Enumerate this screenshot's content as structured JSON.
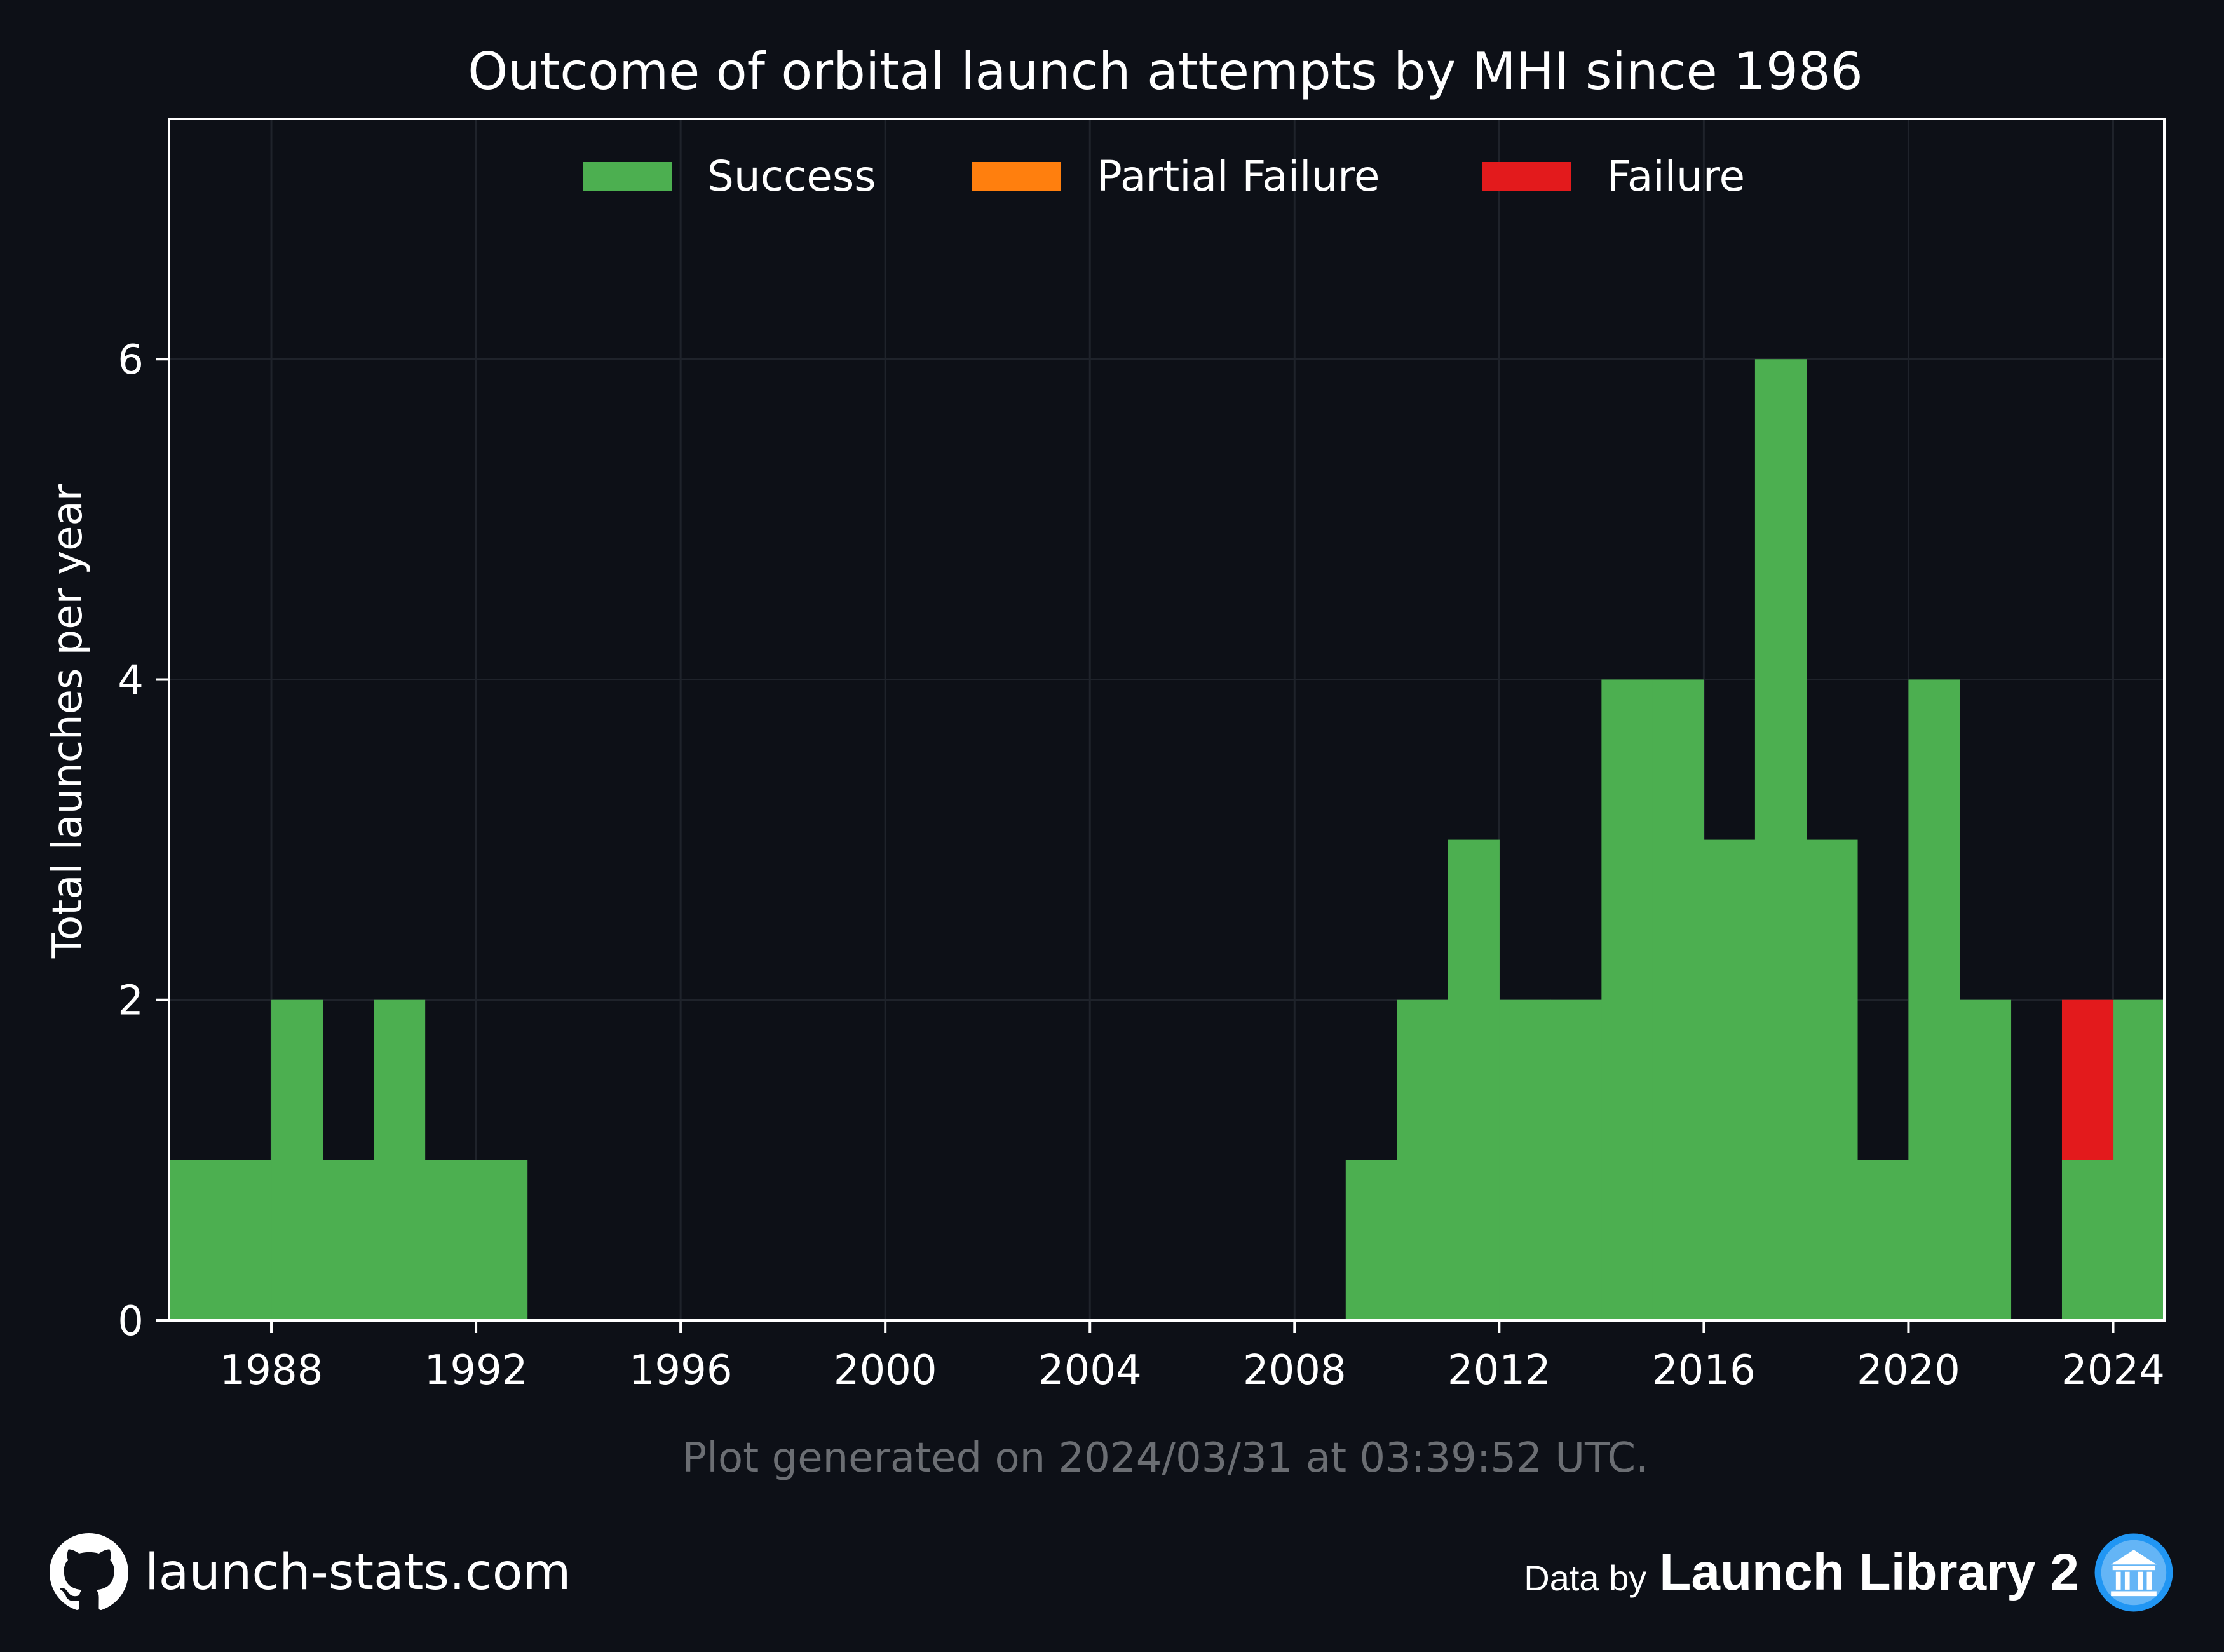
{
  "chart_data": {
    "type": "bar",
    "stacked": true,
    "title": "Outcome of orbital launch attempts by MHI since 1986",
    "xlabel": "",
    "ylabel": "Total launches per year",
    "xlim": [
      1986,
      2025
    ],
    "ylim": [
      0,
      7.5
    ],
    "x_ticks": [
      1988,
      1992,
      1996,
      2000,
      2004,
      2008,
      2012,
      2016,
      2020,
      2024
    ],
    "y_ticks": [
      0,
      2,
      4,
      6
    ],
    "grid": true,
    "legend_position": "top",
    "categories": [
      1986,
      1987,
      1988,
      1989,
      1990,
      1991,
      1992,
      1993,
      1994,
      1995,
      1996,
      1997,
      1998,
      1999,
      2000,
      2001,
      2002,
      2003,
      2004,
      2005,
      2006,
      2007,
      2008,
      2009,
      2010,
      2011,
      2012,
      2013,
      2014,
      2015,
      2016,
      2017,
      2018,
      2019,
      2020,
      2021,
      2022,
      2023,
      2024
    ],
    "series": [
      {
        "name": "Success",
        "color": "#4caf50",
        "values": [
          1,
          1,
          2,
          1,
          2,
          1,
          1,
          0,
          0,
          0,
          0,
          0,
          0,
          0,
          0,
          0,
          0,
          0,
          0,
          0,
          0,
          0,
          0,
          1,
          2,
          3,
          2,
          2,
          4,
          4,
          3,
          6,
          3,
          1,
          4,
          2,
          0,
          1,
          2
        ]
      },
      {
        "name": "Partial Failure",
        "color": "#ff7f0e",
        "values": [
          0,
          0,
          0,
          0,
          0,
          0,
          0,
          0,
          0,
          0,
          0,
          0,
          0,
          0,
          0,
          0,
          0,
          0,
          0,
          0,
          0,
          0,
          0,
          0,
          0,
          0,
          0,
          0,
          0,
          0,
          0,
          0,
          0,
          0,
          0,
          0,
          0,
          0,
          0
        ]
      },
      {
        "name": "Failure",
        "color": "#e31a1c",
        "values": [
          0,
          0,
          0,
          0,
          0,
          0,
          0,
          0,
          0,
          0,
          0,
          0,
          0,
          0,
          0,
          0,
          0,
          0,
          0,
          0,
          0,
          0,
          0,
          0,
          0,
          0,
          0,
          0,
          0,
          0,
          0,
          0,
          0,
          0,
          0,
          0,
          0,
          1,
          0
        ]
      }
    ],
    "footnote": "Plot generated on 2024/03/31 at 03:39:52 UTC."
  },
  "footer": {
    "site": "launch-stats.com",
    "data_by": "Data by",
    "library": "Launch Library 2",
    "github_icon": "github-icon",
    "library_icon": "launch-library-icon"
  },
  "colors": {
    "background": "#0d1017",
    "grid": "#1f232b",
    "axis": "#ffffff",
    "footnote": "#6b6e73"
  }
}
